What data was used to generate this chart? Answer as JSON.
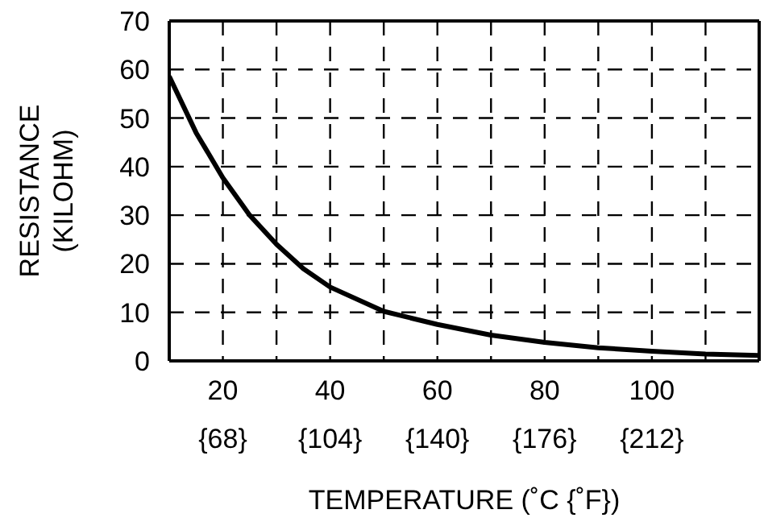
{
  "chart_data": {
    "type": "line",
    "xlabel": "TEMPERATURE (˚C {˚F})",
    "ylabel": "RESISTANCE\n(KILOHM)",
    "x": [
      10,
      15,
      20,
      25,
      30,
      35,
      40,
      50,
      60,
      70,
      80,
      90,
      100,
      110,
      120
    ],
    "series": [
      {
        "color": "#000000",
        "values": [
          58.6,
          47,
          37.7,
          30,
          24,
          19,
          15.2,
          10.2,
          7.5,
          5.3,
          3.8,
          2.7,
          2.0,
          1.4,
          1.1
        ]
      }
    ],
    "xlim": [
      10,
      120
    ],
    "xticks": [
      20,
      {
        "value": 30,
        "label": null
      },
      40,
      {
        "value": 50,
        "label": null
      },
      60,
      {
        "value": 70,
        "label": null
      },
      80,
      {
        "value": 90,
        "label": null
      },
      100,
      {
        "value": 110,
        "label": null
      }
    ],
    "x2lim": [
      50,
      248
    ],
    "x2ticks": [
      {
        "value": 68,
        "label": "{68}"
      },
      {
        "value": 104,
        "label": "{104}"
      },
      {
        "value": 140,
        "label": "{140}"
      },
      {
        "value": 176,
        "label": "{176}"
      },
      {
        "value": 212,
        "label": "{212}"
      }
    ],
    "ylim": [
      0,
      70
    ],
    "yticks": [
      0,
      10,
      20,
      30,
      40,
      50,
      60,
      70
    ],
    "grid": true,
    "legend": false,
    "marker": "none",
    "line_style": "solid"
  }
}
